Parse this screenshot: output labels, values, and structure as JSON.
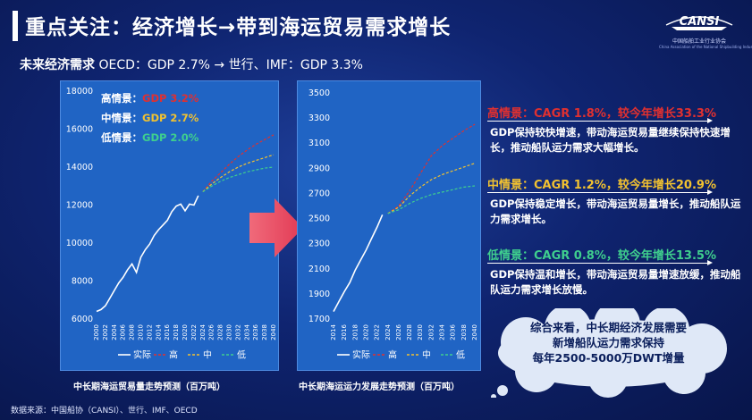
{
  "title": "重点关注：经济增长→带到海运贸易需求增长",
  "logo": {
    "text": "CANSI",
    "sub": "中国船舶工业行业协会",
    "sub2": "China Association of the National Shipbuilding Industry"
  },
  "subtitle": {
    "bold": "未来经济需求",
    "rest": "OECD：GDP 2.7%  →  世行、IMF：GDP 3.3%"
  },
  "colors": {
    "actual": "#ffffff",
    "high": "#e03030",
    "mid": "#f2c230",
    "low": "#3fcf8e"
  },
  "chart_data": [
    {
      "type": "line",
      "title": "中长期海运贸易量走势预测（百万吨）",
      "xlim": [
        2000,
        2040
      ],
      "ylim": [
        6000,
        18000
      ],
      "x_ticks": [
        "2000",
        "2002",
        "2004",
        "2006",
        "2008",
        "2010",
        "2012",
        "2014",
        "2016",
        "2018",
        "2020",
        "2022",
        "2024",
        "2026",
        "2028",
        "2030",
        "2032",
        "2034",
        "2036",
        "2038",
        "2040"
      ],
      "y_ticks": [
        "6000",
        "8000",
        "10000",
        "12000",
        "14000",
        "16000",
        "18000"
      ],
      "annotations": [
        {
          "label": "高情景：",
          "value": "GDP 3.2%",
          "color": "#e03030"
        },
        {
          "label": "中情景：",
          "value": "GDP 2.7%",
          "color": "#f2c230"
        },
        {
          "label": "低情景：",
          "value": "GDP 2.0%",
          "color": "#3fcf8e"
        }
      ],
      "legend": [
        "实际",
        "高",
        "中",
        "低"
      ],
      "series": [
        {
          "name": "实际",
          "x": [
            2000,
            2001,
            2002,
            2003,
            2004,
            2005,
            2006,
            2007,
            2008,
            2009,
            2010,
            2011,
            2012,
            2013,
            2014,
            2015,
            2016,
            2017,
            2018,
            2019,
            2020,
            2021,
            2022,
            2023
          ],
          "values": [
            6400,
            6500,
            6700,
            7100,
            7500,
            7900,
            8200,
            8600,
            8900,
            8450,
            9250,
            9650,
            9950,
            10400,
            10700,
            10950,
            11200,
            11650,
            11950,
            12050,
            11700,
            12050,
            12000,
            12500
          ]
        },
        {
          "name": "高",
          "x": [
            2024,
            2026,
            2028,
            2030,
            2032,
            2034,
            2036,
            2038,
            2040
          ],
          "values": [
            12700,
            13250,
            13700,
            14150,
            14550,
            14900,
            15200,
            15450,
            15700
          ]
        },
        {
          "name": "中",
          "x": [
            2024,
            2026,
            2028,
            2030,
            2032,
            2034,
            2036,
            2038,
            2040
          ],
          "values": [
            12700,
            13100,
            13450,
            13750,
            14000,
            14200,
            14350,
            14500,
            14650
          ]
        },
        {
          "name": "低",
          "x": [
            2024,
            2026,
            2028,
            2030,
            2032,
            2034,
            2036,
            2038,
            2040
          ],
          "values": [
            12700,
            13000,
            13250,
            13450,
            13600,
            13750,
            13850,
            13950,
            14000
          ]
        }
      ]
    },
    {
      "type": "line",
      "title": "中长期海运运力发展走势预测（百万吨）",
      "xlim": [
        2014,
        2040
      ],
      "ylim": [
        1700,
        3500
      ],
      "x_ticks": [
        "2014",
        "2016",
        "2018",
        "2020",
        "2022",
        "2024",
        "2026",
        "2028",
        "2030",
        "2032",
        "2034",
        "2036",
        "2038",
        "2040"
      ],
      "y_ticks": [
        "1700",
        "1900",
        "2100",
        "2300",
        "2500",
        "2700",
        "2900",
        "3100",
        "3300",
        "3500"
      ],
      "legend": [
        "实际",
        "高",
        "中",
        "低"
      ],
      "series": [
        {
          "name": "实际",
          "x": [
            2014,
            2015,
            2016,
            2017,
            2018,
            2019,
            2020,
            2021,
            2022,
            2023
          ],
          "values": [
            1760,
            1840,
            1920,
            1990,
            2090,
            2170,
            2250,
            2340,
            2430,
            2530
          ]
        },
        {
          "name": "高",
          "x": [
            2024,
            2026,
            2028,
            2030,
            2032,
            2034,
            2036,
            2038,
            2040
          ],
          "values": [
            2540,
            2600,
            2720,
            2860,
            3000,
            3080,
            3140,
            3200,
            3250
          ]
        },
        {
          "name": "中",
          "x": [
            2024,
            2026,
            2028,
            2030,
            2032,
            2034,
            2036,
            2038,
            2040
          ],
          "values": [
            2540,
            2590,
            2680,
            2750,
            2810,
            2850,
            2880,
            2910,
            2940
          ]
        },
        {
          "name": "低",
          "x": [
            2024,
            2026,
            2028,
            2030,
            2032,
            2034,
            2036,
            2038,
            2040
          ],
          "values": [
            2540,
            2570,
            2620,
            2660,
            2690,
            2710,
            2730,
            2750,
            2760
          ]
        }
      ]
    }
  ],
  "scenarios": [
    {
      "head": "高情景：CAGR 1.8%，较今年增长33.3%",
      "color": "#e03030",
      "desc": "GDP保持较快增速，带动海运贸易量继续保持快速增长，推动船队运力需求大幅增长。"
    },
    {
      "head": "中情景：CAGR 1.2%，较今年增长20.9%",
      "color": "#f2c230",
      "desc": "GDP保持稳定增长，带动海运贸易量增长，推动船队运力需求增长。"
    },
    {
      "head": "低情景：CAGR 0.8%，较今年增长13.5%",
      "color": "#3fcf8e",
      "desc": "GDP保持温和增长，带动海运贸易量增速放缓，推动船队运力需求增长放慢。"
    }
  ],
  "summary": {
    "line1": "综合来看，中长期经济发展需要",
    "line2": "新增船队运力需求保持",
    "line3": "每年2500-5000万DWT增量"
  },
  "source": "数据来源：中国船协（CANSI）、世行、IMF、OECD"
}
